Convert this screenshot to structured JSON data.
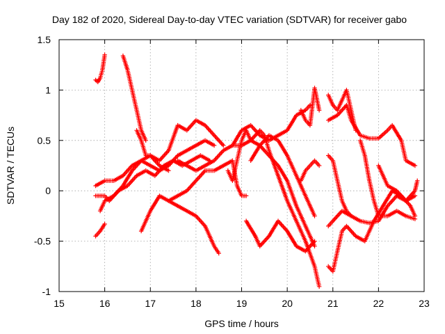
{
  "chart_data": {
    "type": "scatter",
    "title": "Day 182 of 2020, Sidereal Day-to-day VTEC variation (SDTVAR) for receiver gabo",
    "xlabel": "GPS time / hours",
    "ylabel": "SDTVAR / TECUs",
    "xlim": [
      15,
      23
    ],
    "ylim": [
      -1,
      1.5
    ],
    "xticks": [
      15,
      16,
      17,
      18,
      19,
      20,
      21,
      22,
      23
    ],
    "xtick_labels": [
      "15",
      "16",
      "17",
      "18",
      "19",
      "20",
      "21",
      "22",
      "23"
    ],
    "yticks": [
      -1,
      -0.5,
      0,
      0.5,
      1,
      1.5
    ],
    "ytick_labels": [
      "-1",
      "-0.5",
      "0",
      "0.5",
      "1",
      "1.5"
    ],
    "grid": true,
    "marker": "+",
    "color": "#ff0000",
    "series": [
      {
        "name": "track-1",
        "points": [
          [
            15.8,
            1.1
          ],
          [
            15.85,
            1.08
          ],
          [
            15.9,
            1.12
          ],
          [
            15.95,
            1.2
          ],
          [
            16.0,
            1.35
          ]
        ]
      },
      {
        "name": "track-2",
        "points": [
          [
            16.4,
            1.34
          ],
          [
            16.5,
            1.2
          ],
          [
            16.6,
            1.0
          ],
          [
            16.7,
            0.8
          ],
          [
            16.8,
            0.6
          ],
          [
            16.9,
            0.5
          ]
        ]
      },
      {
        "name": "track-3",
        "points": [
          [
            15.8,
            -0.45
          ],
          [
            15.9,
            -0.4
          ],
          [
            16.0,
            -0.33
          ]
        ]
      },
      {
        "name": "track-4",
        "points": [
          [
            15.8,
            0.05
          ],
          [
            16.0,
            0.1
          ],
          [
            16.2,
            0.1
          ],
          [
            16.4,
            0.15
          ],
          [
            16.6,
            0.25
          ],
          [
            16.8,
            0.3
          ],
          [
            17.0,
            0.25
          ],
          [
            17.2,
            0.2
          ],
          [
            17.4,
            0.25
          ],
          [
            17.6,
            0.35
          ],
          [
            17.8,
            0.4
          ],
          [
            18.0,
            0.45
          ],
          [
            18.2,
            0.5
          ],
          [
            18.4,
            0.45
          ]
        ]
      },
      {
        "name": "track-5",
        "points": [
          [
            15.9,
            -0.2
          ],
          [
            16.0,
            -0.1
          ],
          [
            16.2,
            -0.05
          ],
          [
            16.4,
            0.05
          ],
          [
            16.6,
            0.2
          ],
          [
            16.8,
            0.3
          ],
          [
            17.0,
            0.35
          ],
          [
            17.2,
            0.3
          ],
          [
            17.4,
            0.4
          ],
          [
            17.6,
            0.65
          ],
          [
            17.8,
            0.6
          ],
          [
            18.0,
            0.7
          ],
          [
            18.2,
            0.65
          ],
          [
            18.4,
            0.55
          ],
          [
            18.6,
            0.45
          ]
        ]
      },
      {
        "name": "track-6",
        "points": [
          [
            15.8,
            -0.05
          ],
          [
            16.0,
            -0.05
          ],
          [
            16.1,
            -0.1
          ],
          [
            16.3,
            0.0
          ],
          [
            16.5,
            0.05
          ],
          [
            16.7,
            0.15
          ],
          [
            16.9,
            0.2
          ],
          [
            17.1,
            0.15
          ],
          [
            17.3,
            0.25
          ],
          [
            17.5,
            0.3
          ],
          [
            17.7,
            0.25
          ],
          [
            17.9,
            0.3
          ],
          [
            18.1,
            0.35
          ],
          [
            18.3,
            0.3
          ]
        ]
      },
      {
        "name": "track-7",
        "points": [
          [
            16.7,
            0.6
          ],
          [
            16.8,
            0.5
          ],
          [
            16.9,
            0.35
          ],
          [
            17.0,
            0.35
          ],
          [
            17.2,
            0.25
          ],
          [
            17.4,
            0.2
          ]
        ]
      },
      {
        "name": "track-8",
        "points": [
          [
            16.8,
            -0.4
          ],
          [
            17.0,
            -0.2
          ],
          [
            17.2,
            -0.05
          ],
          [
            17.4,
            -0.1
          ],
          [
            17.6,
            -0.05
          ],
          [
            17.8,
            0.0
          ],
          [
            18.0,
            0.1
          ],
          [
            18.2,
            0.2
          ],
          [
            18.4,
            0.2
          ],
          [
            18.6,
            0.25
          ],
          [
            18.8,
            0.3
          ],
          [
            18.9,
            0.05
          ],
          [
            19.0,
            -0.05
          ],
          [
            19.1,
            -0.05
          ]
        ]
      },
      {
        "name": "track-9",
        "points": [
          [
            17.4,
            -0.1
          ],
          [
            17.6,
            -0.15
          ],
          [
            17.8,
            -0.2
          ],
          [
            18.0,
            -0.25
          ],
          [
            18.2,
            -0.35
          ],
          [
            18.3,
            -0.45
          ],
          [
            18.4,
            -0.55
          ],
          [
            18.5,
            -0.62
          ]
        ]
      },
      {
        "name": "track-10",
        "points": [
          [
            17.6,
            0.3
          ],
          [
            17.8,
            0.25
          ],
          [
            18.0,
            0.2
          ],
          [
            18.2,
            0.25
          ],
          [
            18.4,
            0.3
          ],
          [
            18.6,
            0.4
          ],
          [
            18.8,
            0.45
          ],
          [
            19.0,
            0.6
          ],
          [
            19.2,
            0.65
          ],
          [
            19.4,
            0.55
          ],
          [
            19.6,
            0.5
          ],
          [
            19.8,
            0.55
          ],
          [
            20.0,
            0.6
          ],
          [
            20.2,
            0.75
          ],
          [
            20.4,
            0.8
          ],
          [
            20.5,
            0.85
          ]
        ]
      },
      {
        "name": "track-11",
        "points": [
          [
            18.7,
            0.2
          ],
          [
            18.8,
            0.1
          ],
          [
            18.9,
            0.3
          ],
          [
            19.0,
            0.5
          ],
          [
            19.1,
            0.6
          ],
          [
            19.2,
            0.5
          ],
          [
            19.4,
            0.45
          ],
          [
            19.6,
            0.35
          ],
          [
            19.8,
            0.25
          ],
          [
            20.0,
            0.1
          ],
          [
            20.2,
            -0.15
          ],
          [
            20.4,
            -0.35
          ],
          [
            20.6,
            -0.55
          ]
        ]
      },
      {
        "name": "track-12",
        "points": [
          [
            18.8,
            0.45
          ],
          [
            19.0,
            0.45
          ],
          [
            19.2,
            0.5
          ],
          [
            19.4,
            0.6
          ],
          [
            19.5,
            0.55
          ],
          [
            19.6,
            0.4
          ],
          [
            19.8,
            0.15
          ],
          [
            20.0,
            -0.1
          ],
          [
            20.2,
            -0.3
          ],
          [
            20.4,
            -0.5
          ],
          [
            20.6,
            -0.75
          ],
          [
            20.7,
            -0.95
          ]
        ]
      },
      {
        "name": "track-13",
        "points": [
          [
            19.1,
            -0.3
          ],
          [
            19.3,
            -0.45
          ],
          [
            19.4,
            -0.55
          ],
          [
            19.6,
            -0.45
          ],
          [
            19.8,
            -0.3
          ],
          [
            20.0,
            -0.4
          ],
          [
            20.2,
            -0.55
          ],
          [
            20.4,
            -0.6
          ],
          [
            20.6,
            -0.5
          ]
        ]
      },
      {
        "name": "track-14",
        "points": [
          [
            19.2,
            0.3
          ],
          [
            19.4,
            0.45
          ],
          [
            19.6,
            0.55
          ],
          [
            19.8,
            0.5
          ],
          [
            20.0,
            0.35
          ],
          [
            20.2,
            0.15
          ],
          [
            20.4,
            -0.05
          ],
          [
            20.6,
            -0.25
          ]
        ]
      },
      {
        "name": "track-15",
        "points": [
          [
            20.3,
            0.8
          ],
          [
            20.4,
            0.7
          ],
          [
            20.5,
            0.65
          ],
          [
            20.6,
            1.02
          ],
          [
            20.7,
            0.8
          ]
        ]
      },
      {
        "name": "track-16",
        "points": [
          [
            20.3,
            0.1
          ],
          [
            20.4,
            0.2
          ],
          [
            20.5,
            0.25
          ],
          [
            20.6,
            0.3
          ],
          [
            20.7,
            0.25
          ]
        ]
      },
      {
        "name": "track-17",
        "points": [
          [
            20.9,
            0.95
          ],
          [
            21.0,
            0.85
          ],
          [
            21.1,
            0.8
          ],
          [
            21.2,
            0.9
          ],
          [
            21.3,
            1.0
          ],
          [
            21.4,
            0.8
          ],
          [
            21.5,
            0.6
          ]
        ]
      },
      {
        "name": "track-18",
        "points": [
          [
            20.9,
            0.35
          ],
          [
            21.0,
            0.3
          ],
          [
            21.1,
            0.1
          ],
          [
            21.2,
            -0.1
          ],
          [
            21.3,
            -0.2
          ],
          [
            21.4,
            -0.25
          ]
        ]
      },
      {
        "name": "track-19",
        "points": [
          [
            20.9,
            0.7
          ],
          [
            21.1,
            0.75
          ],
          [
            21.3,
            0.85
          ],
          [
            21.4,
            0.7
          ],
          [
            21.6,
            0.55
          ],
          [
            21.8,
            0.52
          ],
          [
            22.0,
            0.52
          ],
          [
            22.2,
            0.6
          ],
          [
            22.3,
            0.65
          ],
          [
            22.5,
            0.5
          ],
          [
            22.6,
            0.3
          ],
          [
            22.8,
            0.25
          ]
        ]
      },
      {
        "name": "track-20",
        "points": [
          [
            20.9,
            -0.35
          ],
          [
            21.0,
            -0.3
          ],
          [
            21.2,
            -0.2
          ],
          [
            21.4,
            -0.25
          ],
          [
            21.6,
            -0.3
          ],
          [
            21.8,
            -0.32
          ],
          [
            22.0,
            -0.3
          ],
          [
            22.2,
            -0.15
          ],
          [
            22.4,
            -0.05
          ],
          [
            22.6,
            -0.1
          ],
          [
            22.8,
            -0.05
          ]
        ]
      },
      {
        "name": "track-21",
        "points": [
          [
            20.9,
            -0.75
          ],
          [
            21.0,
            -0.8
          ],
          [
            21.1,
            -0.6
          ],
          [
            21.2,
            -0.4
          ],
          [
            21.3,
            -0.35
          ],
          [
            21.5,
            -0.45
          ],
          [
            21.7,
            -0.5
          ],
          [
            21.9,
            -0.3
          ],
          [
            22.1,
            -0.15
          ],
          [
            22.3,
            0.0
          ],
          [
            22.5,
            -0.05
          ],
          [
            22.7,
            -0.15
          ],
          [
            22.8,
            -0.25
          ]
        ]
      },
      {
        "name": "track-22",
        "points": [
          [
            21.6,
            0.5
          ],
          [
            21.7,
            0.35
          ],
          [
            21.8,
            0.1
          ],
          [
            21.9,
            -0.1
          ],
          [
            22.0,
            -0.25
          ],
          [
            22.2,
            -0.25
          ],
          [
            22.4,
            -0.2
          ],
          [
            22.6,
            -0.25
          ],
          [
            22.8,
            -0.28
          ]
        ]
      },
      {
        "name": "track-23",
        "points": [
          [
            22.0,
            0.25
          ],
          [
            22.2,
            0.05
          ],
          [
            22.4,
            0.0
          ],
          [
            22.6,
            -0.1
          ],
          [
            22.8,
            0.0
          ],
          [
            22.85,
            0.1
          ]
        ]
      }
    ]
  }
}
